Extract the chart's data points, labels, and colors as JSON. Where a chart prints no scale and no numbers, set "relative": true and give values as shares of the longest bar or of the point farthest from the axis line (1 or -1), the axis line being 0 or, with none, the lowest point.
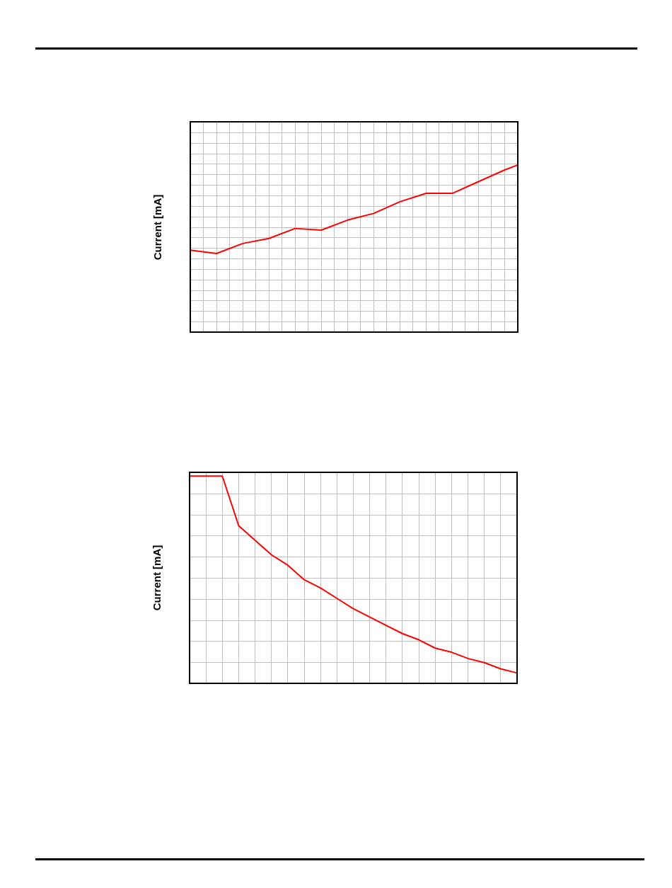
{
  "chart_data": [
    {
      "type": "line",
      "ylabel": "Current [mA]",
      "relative": true,
      "grid": true,
      "color": "#ff0000",
      "categories": [
        null,
        null,
        null,
        null,
        null,
        null,
        null,
        null,
        null,
        null,
        null,
        null,
        null,
        null,
        null,
        null,
        null,
        null,
        null,
        null,
        null,
        null,
        null,
        null,
        null,
        null
      ],
      "values": [
        0.49,
        null,
        0.47,
        null,
        0.53,
        null,
        0.56,
        null,
        0.62,
        null,
        0.61,
        null,
        0.67,
        null,
        0.71,
        null,
        0.78,
        null,
        0.83,
        null,
        0.83,
        null,
        0.9,
        null,
        0.97,
        1
      ]
    },
    {
      "type": "line",
      "ylabel": "Current [mA]",
      "relative": true,
      "grid": true,
      "color": "#ff0000",
      "categories": [
        null,
        null,
        null,
        null,
        null,
        null,
        null,
        null,
        null,
        null,
        null,
        null,
        null,
        null,
        null,
        null,
        null,
        null,
        null,
        null,
        null
      ],
      "values": [
        1,
        1,
        1,
        0.76,
        0.69,
        0.62,
        0.57,
        0.5,
        0.46,
        0.41,
        0.36,
        0.32,
        0.28,
        0.24,
        0.21,
        0.17,
        0.15,
        0.12,
        0.1,
        0.07,
        0.05
      ]
    }
  ]
}
